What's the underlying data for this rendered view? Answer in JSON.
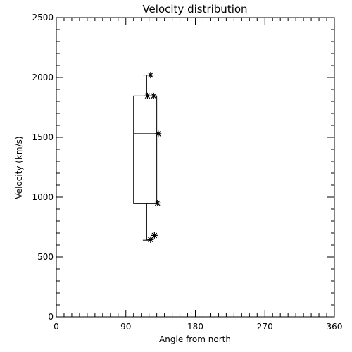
{
  "chart_data": {
    "type": "box",
    "title": "Velocity distribution",
    "xlabel": "Angle from north",
    "ylabel": "Velocity (km/s)",
    "xlim": [
      0,
      360
    ],
    "ylim": [
      0,
      2500
    ],
    "xticks": [
      0,
      90,
      180,
      270,
      360
    ],
    "xtick_labels": [
      "0",
      "90",
      "180",
      "270",
      "360"
    ],
    "yticks": [
      0,
      500,
      1000,
      1500,
      2000,
      2500
    ],
    "ytick_labels": [
      "0",
      "500",
      "1000",
      "1500",
      "2000",
      "2500"
    ],
    "x_minor_step": 10,
    "y_minor_step": 100,
    "grid": false,
    "box": {
      "x_left": 100,
      "x_right": 130,
      "q1": 945,
      "median": 1530,
      "q3": 1845,
      "whisker_x": 117,
      "whisker_low": 640,
      "whisker_high": 2020,
      "cap_x_start": 112,
      "cap_x_end": 122
    },
    "points": [
      {
        "x": 122,
        "y": 2020
      },
      {
        "x": 118,
        "y": 1845
      },
      {
        "x": 126,
        "y": 1845
      },
      {
        "x": 132,
        "y": 1530
      },
      {
        "x": 131,
        "y": 950
      },
      {
        "x": 127,
        "y": 680
      },
      {
        "x": 122,
        "y": 645
      }
    ],
    "marker_color": "#000000",
    "line_color": "#000000"
  }
}
